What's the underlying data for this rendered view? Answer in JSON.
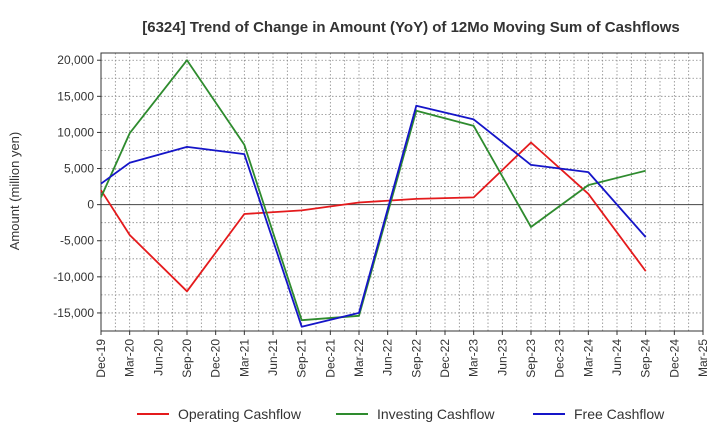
{
  "chart_data": {
    "type": "line",
    "title": "[6324]  Trend of Change in Amount (YoY) of 12Mo Moving Sum of Cashflows",
    "xlabel": "",
    "ylabel": "Amount (million yen)",
    "ylim": [
      -17500,
      21000
    ],
    "yticks": [
      -15000,
      -10000,
      -5000,
      0,
      5000,
      10000,
      15000,
      20000
    ],
    "ytick_labels": [
      "-15,000",
      "-10,000",
      "-5,000",
      "0",
      "5,000",
      "10,000",
      "15,000",
      "20,000"
    ],
    "categories": [
      "Dec-19",
      "Mar-20",
      "Jun-20",
      "Sep-20",
      "Dec-20",
      "Mar-21",
      "Jun-21",
      "Sep-21",
      "Dec-21",
      "Mar-22",
      "Jun-22",
      "Sep-22",
      "Dec-22",
      "Mar-23",
      "Jun-23",
      "Sep-23",
      "Dec-23",
      "Mar-24",
      "Jun-24",
      "Sep-24",
      "Dec-24",
      "Mar-25"
    ],
    "grid": true,
    "legend_position": "bottom",
    "series": [
      {
        "name": "Operating Cashflow",
        "color": "#e41a1c",
        "values": [
          2000,
          -4200,
          null,
          -12000,
          null,
          -1300,
          null,
          -800,
          null,
          300,
          null,
          800,
          null,
          1000,
          null,
          8600,
          null,
          1500,
          null,
          -9200,
          null,
          null
        ]
      },
      {
        "name": "Investing Cashflow",
        "color": "#2e8b2e",
        "values": [
          1000,
          9900,
          null,
          20000,
          null,
          8300,
          null,
          -16000,
          null,
          -15400,
          null,
          13000,
          null,
          10900,
          null,
          -3100,
          null,
          2700,
          null,
          4700,
          null,
          null
        ]
      },
      {
        "name": "Free Cashflow",
        "color": "#1515c8",
        "values": [
          2900,
          5800,
          null,
          8000,
          null,
          7000,
          null,
          -16900,
          null,
          -15000,
          null,
          13700,
          null,
          11800,
          null,
          5500,
          null,
          4500,
          null,
          -4500,
          null,
          null
        ]
      }
    ]
  }
}
